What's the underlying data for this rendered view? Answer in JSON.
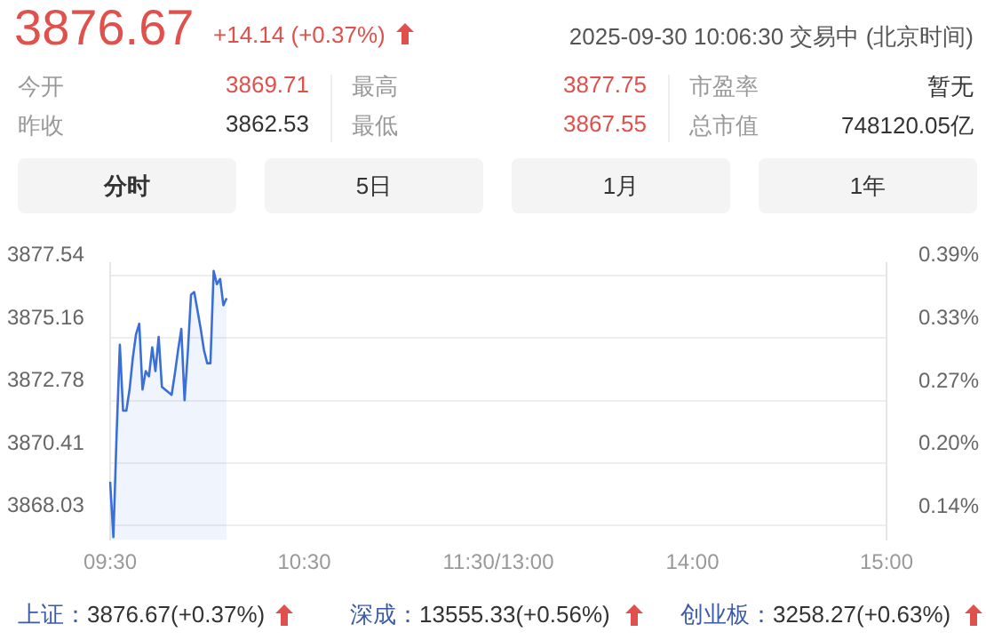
{
  "chart_data": {
    "type": "area",
    "title": "3876.67",
    "subtitle": "+14.14 (+0.37%)",
    "annotations": [
      "2025-09-30 10:06:30 交易中 (北京时间)",
      "今开",
      "3869.71",
      "最高",
      "3877.75",
      "市盈率",
      "暂无",
      "昨收",
      "3862.53",
      "最低",
      "3867.55",
      "总市值",
      "748120.05亿",
      "分时",
      "5日",
      "1月",
      "1年",
      "上证：",
      "3876.67(+0.37%)",
      "深成：",
      "13555.33(+0.56%)",
      "创业板：",
      "3258.27(+0.63%)"
    ],
    "categories": [
      "09:30",
      null,
      null,
      null,
      null,
      null,
      null,
      null,
      null,
      null,
      null,
      null,
      null,
      null,
      null,
      null,
      null,
      null,
      null,
      null,
      null,
      null,
      null,
      null,
      null,
      null,
      null,
      null,
      null,
      null,
      null,
      null,
      null,
      null,
      null,
      null,
      null,
      null,
      null,
      null,
      null,
      null,
      null,
      null,
      null,
      null,
      null,
      null,
      null,
      null,
      null,
      null,
      null,
      null,
      null,
      null,
      null,
      null,
      null,
      null,
      "10:30",
      null,
      null,
      null,
      null,
      null,
      null,
      null,
      null,
      null,
      null,
      null,
      null,
      null,
      null,
      null,
      null,
      null,
      null,
      null,
      null,
      null,
      null,
      null,
      null,
      null,
      null,
      null,
      null,
      null,
      null,
      null,
      null,
      null,
      null,
      null,
      null,
      null,
      null,
      null,
      null,
      null,
      null,
      null,
      null,
      null,
      null,
      null,
      null,
      null,
      null,
      null,
      null,
      null,
      null,
      null,
      null,
      null,
      null,
      null,
      "11:30/13:00",
      null,
      null,
      null,
      null,
      null,
      null,
      null,
      null,
      null,
      null,
      null,
      null,
      null,
      null,
      null,
      null,
      null,
      null,
      null,
      null,
      null,
      null,
      null,
      null,
      null,
      null,
      null,
      null,
      null,
      null,
      null,
      null,
      null,
      null,
      null,
      null,
      null,
      null,
      null,
      null,
      null,
      null,
      null,
      null,
      null,
      null,
      null,
      null,
      null,
      null,
      null,
      null,
      null,
      null,
      null,
      null,
      null,
      null,
      null,
      "14:00",
      null,
      null,
      null,
      null,
      null,
      null,
      null,
      null,
      null,
      null,
      null,
      null,
      null,
      null,
      null,
      null,
      null,
      null,
      null,
      null,
      null,
      null,
      null,
      null,
      null,
      null,
      null,
      null,
      null,
      null,
      null,
      null,
      null,
      null,
      null,
      null,
      null,
      null,
      null,
      null,
      null,
      null,
      null,
      null,
      null,
      null,
      null,
      null,
      null,
      null,
      null,
      null,
      null,
      null,
      null,
      null,
      null,
      null,
      null,
      "15:00"
    ],
    "values": [
      3869.7,
      3867.6,
      3871.5,
      3874.9,
      3872.4,
      3872.4,
      3873.2,
      3874.4,
      3875.3,
      3875.7,
      3873.2,
      3873.9,
      3873.7,
      3874.8,
      3873.9,
      3875.2,
      3873.3,
      3873.2,
      3873.1,
      3873.0,
      3873.8,
      3874.7,
      3875.5,
      3872.8,
      3874.6,
      3876.8,
      3876.9,
      3876.2,
      3875.5,
      3874.7,
      3874.2,
      3874.2,
      3877.7,
      3877.2,
      3877.4,
      3876.4,
      3876.67,
      null,
      null,
      null,
      null,
      null,
      null,
      null,
      null,
      null,
      null,
      null,
      null,
      null,
      null,
      null,
      null,
      null,
      null,
      null,
      null,
      null,
      null,
      null,
      null,
      null,
      null,
      null,
      null,
      null,
      null,
      null,
      null,
      null,
      null,
      null,
      null,
      null,
      null,
      null,
      null,
      null,
      null,
      null,
      null,
      null,
      null,
      null,
      null,
      null,
      null,
      null,
      null,
      null,
      null,
      null,
      null,
      null,
      null,
      null,
      null,
      null,
      null,
      null,
      null,
      null,
      null,
      null,
      null,
      null,
      null,
      null,
      null,
      null,
      null,
      null,
      null,
      null,
      null,
      null,
      null,
      null,
      null,
      null,
      null,
      null,
      null,
      null,
      null,
      null,
      null,
      null,
      null,
      null,
      null,
      null,
      null,
      null,
      null,
      null,
      null,
      null,
      null,
      null,
      null,
      null,
      null,
      null,
      null,
      null,
      null,
      null,
      null,
      null,
      null,
      null,
      null,
      null,
      null,
      null,
      null,
      null,
      null,
      null,
      null,
      null,
      null,
      null,
      null,
      null,
      null,
      null,
      null,
      null,
      null,
      null,
      null,
      null,
      null,
      null,
      null,
      null,
      null,
      null,
      null,
      null,
      null,
      null,
      null,
      null,
      null,
      null,
      null,
      null,
      null,
      null,
      null,
      null,
      null,
      null,
      null,
      null,
      null,
      null,
      null,
      null,
      null,
      null,
      null,
      null,
      null,
      null,
      null,
      null,
      null,
      null,
      null,
      null,
      null,
      null,
      null,
      null,
      null,
      null,
      null,
      null,
      null,
      null,
      null,
      null,
      null,
      null,
      null,
      null,
      null,
      null,
      null,
      null,
      null,
      null,
      null,
      null,
      null,
      null,
      null
    ],
    "color": "#3a6fd8",
    "ylim": [
      3867.5,
      3878
    ],
    "yticks": [
      3868.03,
      3870.41,
      3872.78,
      3875.16,
      3877.54
    ],
    "y2lim": [
      0.129,
      0.401
    ],
    "y2ticks": [
      {
        "value": 0.142,
        "label": "0.14%"
      },
      {
        "value": 0.204,
        "label": "0.20%"
      },
      {
        "value": 0.265,
        "label": "0.27%"
      },
      {
        "value": 0.327,
        "label": "0.33%"
      },
      {
        "value": 0.389,
        "label": "0.39%"
      }
    ],
    "grid": "y"
  }
}
